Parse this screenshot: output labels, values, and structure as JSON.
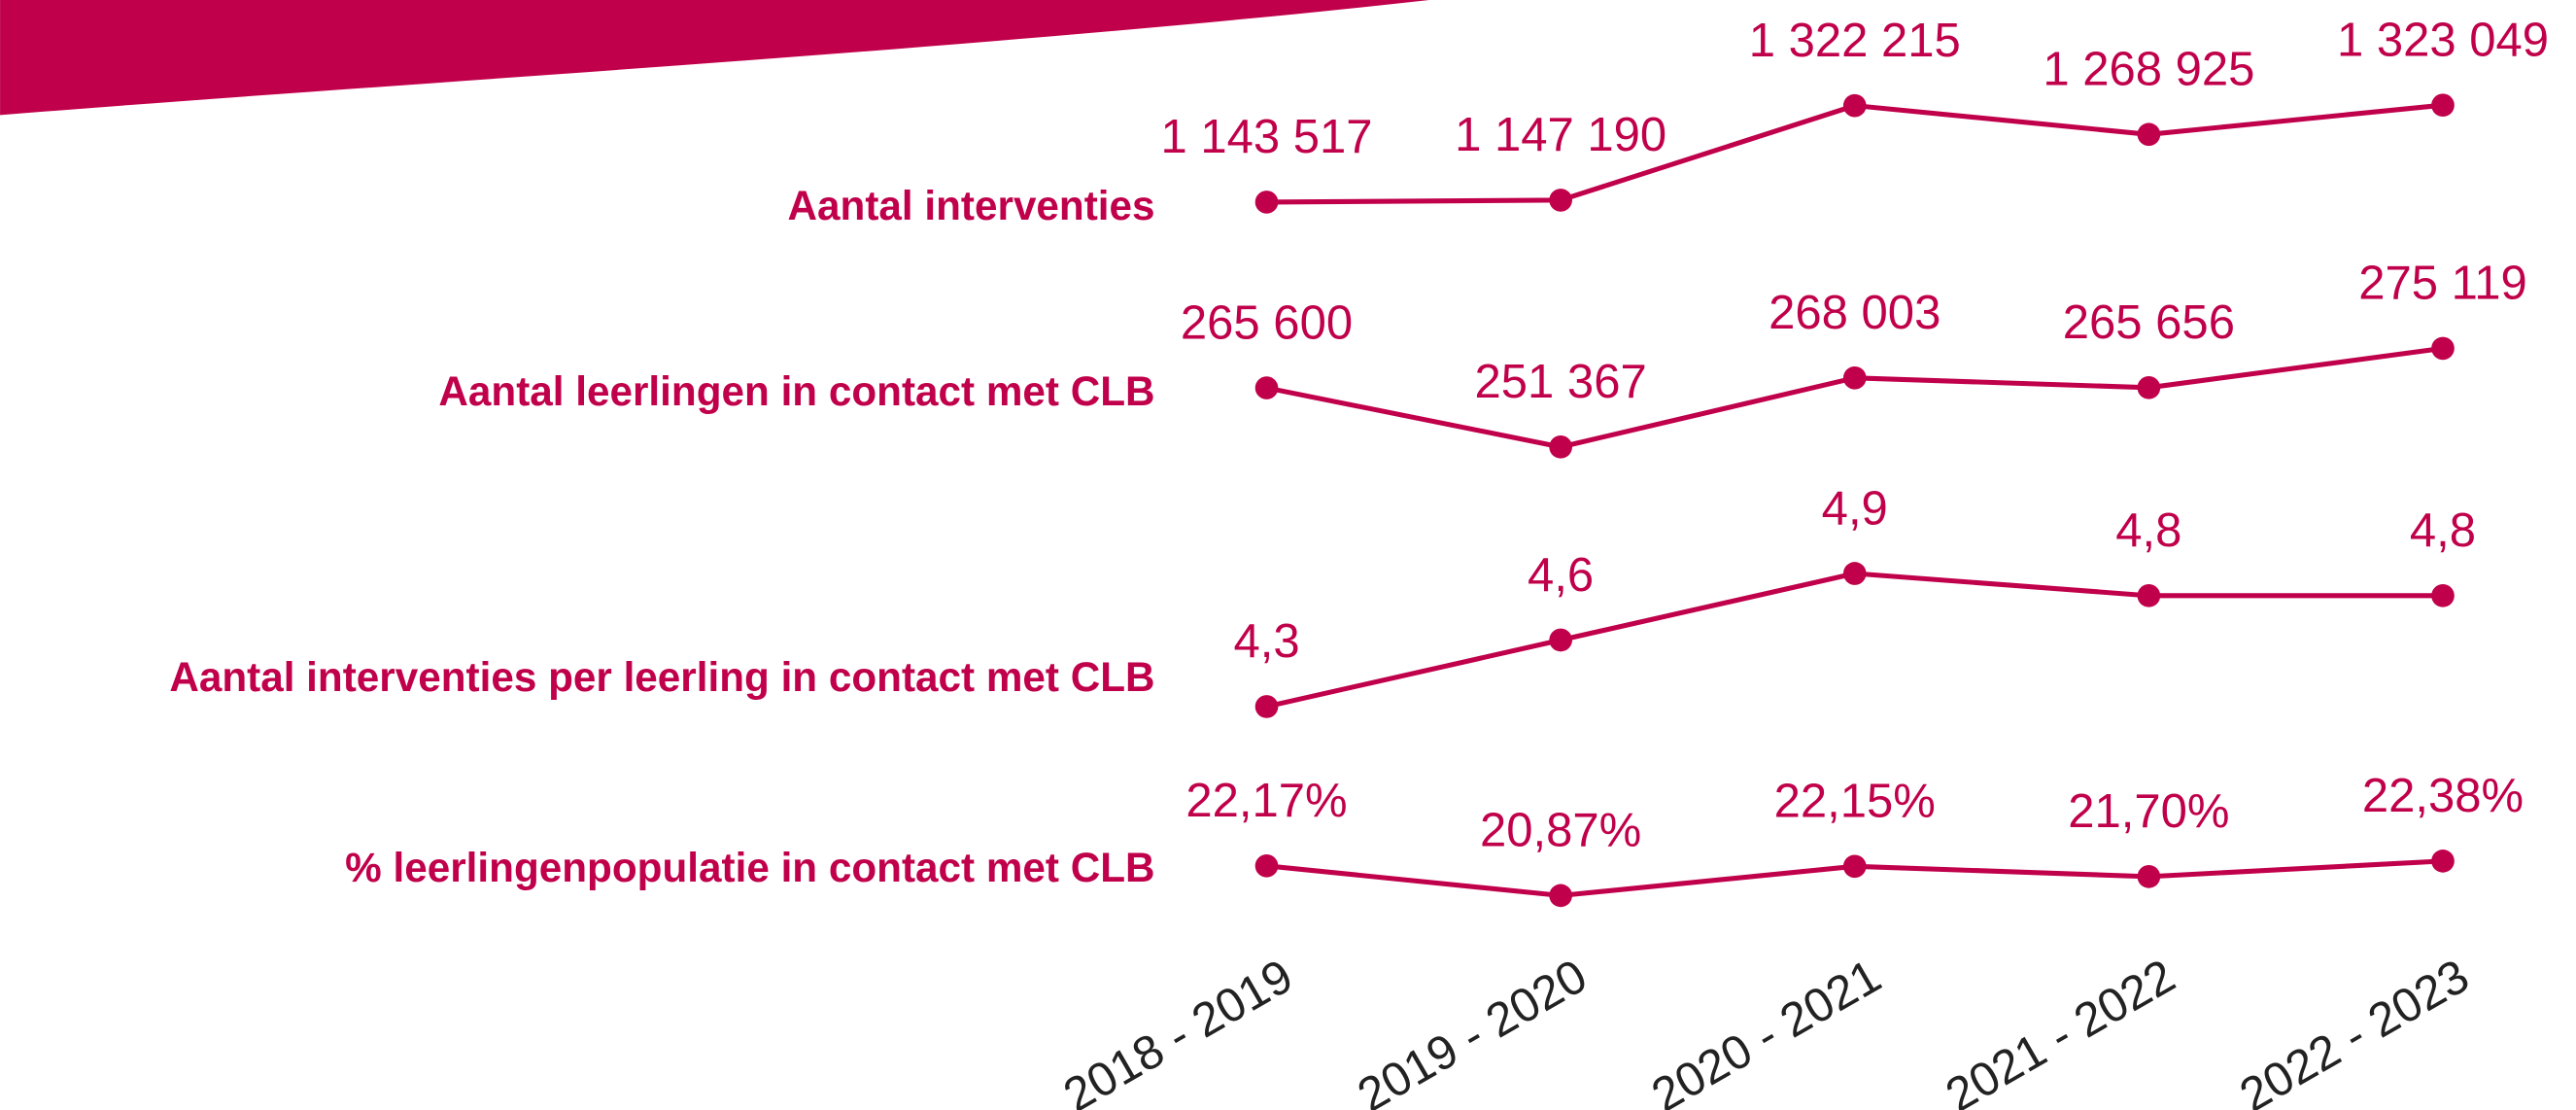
{
  "chart_data": [
    {
      "type": "line",
      "title": "Aantal interventies",
      "color": "#c0004a",
      "values": [
        1143517,
        1147190,
        1322215,
        1268925,
        1323049
      ],
      "value_labels": [
        "1 143 517",
        "1 147 190",
        "1 322 215",
        "1 268 925",
        "1 323 049"
      ]
    },
    {
      "type": "line",
      "title": "Aantal leerlingen in contact met CLB",
      "color": "#c0004a",
      "values": [
        265600,
        251367,
        268003,
        265656,
        275119
      ],
      "value_labels": [
        "265 600",
        "251 367",
        "268 003",
        "265 656",
        "275 119"
      ]
    },
    {
      "type": "line",
      "title": "Aantal interventies per leerling in contact met CLB",
      "color": "#c0004a",
      "values": [
        4.3,
        4.6,
        4.9,
        4.8,
        4.8
      ],
      "value_labels": [
        "4,3",
        "4,6",
        "4,9",
        "4,8",
        "4,8"
      ]
    },
    {
      "type": "line",
      "title": "% leerlingenpopulatie in contact met CLB",
      "color": "#c0004a",
      "values": [
        22.17,
        20.87,
        22.15,
        21.7,
        22.38
      ],
      "value_labels": [
        "22,17%",
        "20,87%",
        "22,15%",
        "21,70%",
        "22,38%"
      ],
      "categories": [
        "2018 - 2019",
        "2019 - 2020",
        "2020 - 2021",
        "2021 - 2022",
        "2022 - 2023"
      ]
    }
  ]
}
